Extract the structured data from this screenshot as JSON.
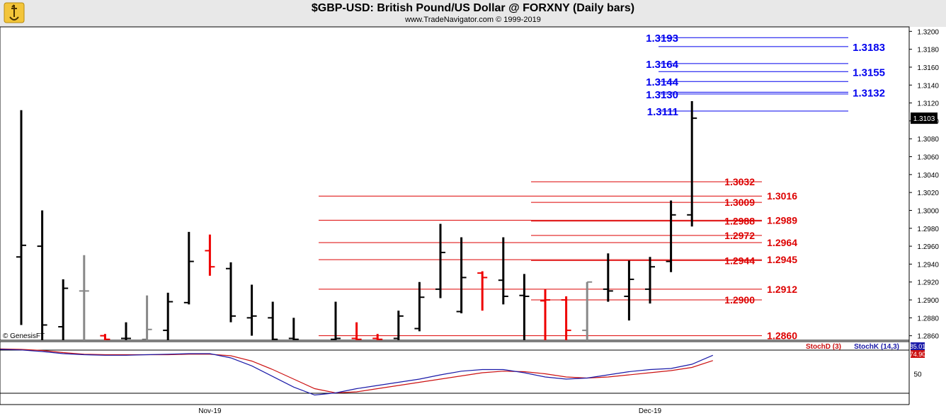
{
  "header": {
    "title": "$GBP-USD:  British Pound/US Dollar @ FORXNY  (Daily bars)",
    "subtitle": "www.TradeNavigator.com © 1999-2019"
  },
  "watermark": "© GenesisFT",
  "colors": {
    "background": "#ffffff",
    "axis_panel": "#ffffff",
    "blue_levels": "#0000ee",
    "red_levels": "#dd0000",
    "up_bar": "#000000",
    "down_bar": "#ee0000",
    "neutral_bar": "#888888",
    "stoch_k": "#1a1aa8",
    "stoch_d": "#cc1111"
  },
  "price_axis": {
    "ticks": [
      "1.3200",
      "1.3180",
      "1.3160",
      "1.3140",
      "1.3120",
      "1.3100",
      "1.3080",
      "1.3060",
      "1.3040",
      "1.3020",
      "1.3000",
      "1.2980",
      "1.2960",
      "1.2940",
      "1.2920",
      "1.2900",
      "1.2880",
      "1.2860"
    ],
    "current_price_label": "1.3103",
    "current_price": 1.3103
  },
  "x_axis": {
    "labels": [
      {
        "text": "Nov-19",
        "bar": 9
      },
      {
        "text": "Dec-19",
        "bar": 30
      }
    ]
  },
  "stoch_panel": {
    "legend_d": "StochD (3)",
    "legend_k": "StochK (14,3)",
    "axis_tick": "50",
    "k_label": "85.01",
    "d_label": "74.90"
  },
  "chart_data": {
    "type": "ohlc",
    "title": "$GBP-USD:  British Pound/US Dollar @ FORXNY  (Daily bars)",
    "ylim": [
      1.2855,
      1.3205
    ],
    "bars": [
      {
        "o": 1.2948,
        "h": 1.3112,
        "l": 1.2872,
        "c": 1.2961,
        "color": "up"
      },
      {
        "o": 1.296,
        "h": 1.3,
        "l": 1.2855,
        "c": 1.2872,
        "color": "up"
      },
      {
        "o": 1.287,
        "h": 1.2923,
        "l": 1.2855,
        "c": 1.2913,
        "color": "up"
      },
      {
        "o": 1.291,
        "h": 1.295,
        "l": 1.2855,
        "c": 1.291,
        "color": "neutral"
      },
      {
        "o": 1.286,
        "h": 1.2862,
        "l": 1.2855,
        "c": 1.2856,
        "color": "down"
      },
      {
        "o": 1.2857,
        "h": 1.2875,
        "l": 1.2855,
        "c": 1.2857,
        "color": "up"
      },
      {
        "o": 1.2856,
        "h": 1.2905,
        "l": 1.2855,
        "c": 1.2867,
        "color": "neutral"
      },
      {
        "o": 1.2866,
        "h": 1.2908,
        "l": 1.2855,
        "c": 1.2898,
        "color": "up"
      },
      {
        "o": 1.2897,
        "h": 1.2976,
        "l": 1.2895,
        "c": 1.2943,
        "color": "up"
      },
      {
        "o": 1.2955,
        "h": 1.2973,
        "l": 1.2927,
        "c": 1.2937,
        "color": "down"
      },
      {
        "o": 1.2935,
        "h": 1.2942,
        "l": 1.2875,
        "c": 1.2882,
        "color": "up"
      },
      {
        "o": 1.288,
        "h": 1.2917,
        "l": 1.286,
        "c": 1.2882,
        "color": "up"
      },
      {
        "o": 1.288,
        "h": 1.2898,
        "l": 1.2855,
        "c": 1.2856,
        "color": "up"
      },
      {
        "o": 1.2857,
        "h": 1.288,
        "l": 1.2855,
        "c": 1.2856,
        "color": "up"
      },
      {
        "o": null,
        "h": null,
        "l": null,
        "c": null,
        "color": "none"
      },
      {
        "o": 1.2856,
        "h": 1.2898,
        "l": 1.2855,
        "c": 1.2857,
        "color": "up"
      },
      {
        "o": 1.2857,
        "h": 1.2875,
        "l": 1.2855,
        "c": 1.2856,
        "color": "down"
      },
      {
        "o": 1.2857,
        "h": 1.2862,
        "l": 1.2855,
        "c": 1.2856,
        "color": "down"
      },
      {
        "o": 1.2857,
        "h": 1.2888,
        "l": 1.2855,
        "c": 1.2882,
        "color": "up"
      },
      {
        "o": 1.2868,
        "h": 1.292,
        "l": 1.2865,
        "c": 1.2903,
        "color": "up"
      },
      {
        "o": 1.2912,
        "h": 1.2985,
        "l": 1.2902,
        "c": 1.2953,
        "color": "up"
      },
      {
        "o": 1.2887,
        "h": 1.297,
        "l": 1.2885,
        "c": 1.2925,
        "color": "up"
      },
      {
        "o": 1.293,
        "h": 1.2932,
        "l": 1.2888,
        "c": 1.2925,
        "color": "down"
      },
      {
        "o": 1.2922,
        "h": 1.297,
        "l": 1.2895,
        "c": 1.2904,
        "color": "up"
      },
      {
        "o": 1.2905,
        "h": 1.2929,
        "l": 1.2855,
        "c": 1.2904,
        "color": "up"
      },
      {
        "o": 1.2899,
        "h": 1.2912,
        "l": 1.2855,
        "c": 1.29,
        "color": "down"
      },
      {
        "o": 1.29,
        "h": 1.2904,
        "l": 1.2855,
        "c": 1.2866,
        "color": "down"
      },
      {
        "o": 1.2866,
        "h": 1.292,
        "l": 1.2855,
        "c": 1.292,
        "color": "neutral"
      },
      {
        "o": 1.2912,
        "h": 1.2952,
        "l": 1.2898,
        "c": 1.291,
        "color": "up"
      },
      {
        "o": 1.2904,
        "h": 1.2944,
        "l": 1.2877,
        "c": 1.2923,
        "color": "up"
      },
      {
        "o": 1.2912,
        "h": 1.2948,
        "l": 1.2896,
        "c": 1.2937,
        "color": "up"
      },
      {
        "o": 1.2943,
        "h": 1.3011,
        "l": 1.2931,
        "c": 1.2995,
        "color": "up"
      },
      {
        "o": 1.2995,
        "h": 1.3122,
        "l": 1.2982,
        "c": 1.3103,
        "color": "up"
      }
    ],
    "levels_blue": [
      {
        "value": 1.3193,
        "label": "1.3193",
        "side": "left"
      },
      {
        "value": 1.3183,
        "label": "1.3183",
        "side": "right"
      },
      {
        "value": 1.3164,
        "label": "1.3164",
        "side": "left"
      },
      {
        "value": 1.3155,
        "label": "1.3155",
        "side": "right"
      },
      {
        "value": 1.3144,
        "label": "1.3144",
        "side": "left"
      },
      {
        "value": 1.3132,
        "label": "1.3132",
        "side": "right"
      },
      {
        "value": 1.313,
        "label": "1.3130",
        "side": "left"
      },
      {
        "value": 1.3111,
        "label": "1.3111",
        "side": "left"
      }
    ],
    "levels_red": [
      {
        "value": 1.3032,
        "label": "1.3032",
        "side": "left",
        "span": "short"
      },
      {
        "value": 1.3016,
        "label": "1.3016",
        "side": "right",
        "span": "long"
      },
      {
        "value": 1.3009,
        "label": "1.3009",
        "side": "left",
        "span": "short"
      },
      {
        "value": 1.2989,
        "label": "1.2989",
        "side": "right",
        "span": "long"
      },
      {
        "value": 1.2988,
        "label": "1.2988",
        "side": "left",
        "span": "short"
      },
      {
        "value": 1.2972,
        "label": "1.2972",
        "side": "left",
        "span": "short"
      },
      {
        "value": 1.2964,
        "label": "1.2964",
        "side": "right",
        "span": "long"
      },
      {
        "value": 1.2945,
        "label": "1.2945",
        "side": "right",
        "span": "long"
      },
      {
        "value": 1.2944,
        "label": "1.2944",
        "side": "left",
        "span": "short"
      },
      {
        "value": 1.2912,
        "label": "1.2912",
        "side": "right",
        "span": "long"
      },
      {
        "value": 1.29,
        "label": "1.2900",
        "side": "left",
        "span": "short"
      },
      {
        "value": 1.286,
        "label": "1.2860",
        "side": "right",
        "span": "long"
      }
    ],
    "stoch_k": [
      96,
      95,
      92,
      88,
      86,
      85,
      85,
      86,
      87,
      88,
      88,
      80,
      65,
      45,
      25,
      10,
      14,
      22,
      28,
      34,
      40,
      48,
      55,
      58,
      58,
      52,
      44,
      40,
      42,
      48,
      54,
      58,
      60,
      68,
      85
    ],
    "stoch_d": [
      97,
      96,
      94,
      90,
      87,
      86,
      86,
      86,
      86,
      87,
      87,
      84,
      74,
      58,
      40,
      22,
      14,
      16,
      22,
      28,
      34,
      40,
      46,
      52,
      55,
      54,
      50,
      44,
      42,
      44,
      48,
      52,
      56,
      62,
      75
    ],
    "stoch_ylim": [
      0,
      100
    ]
  }
}
